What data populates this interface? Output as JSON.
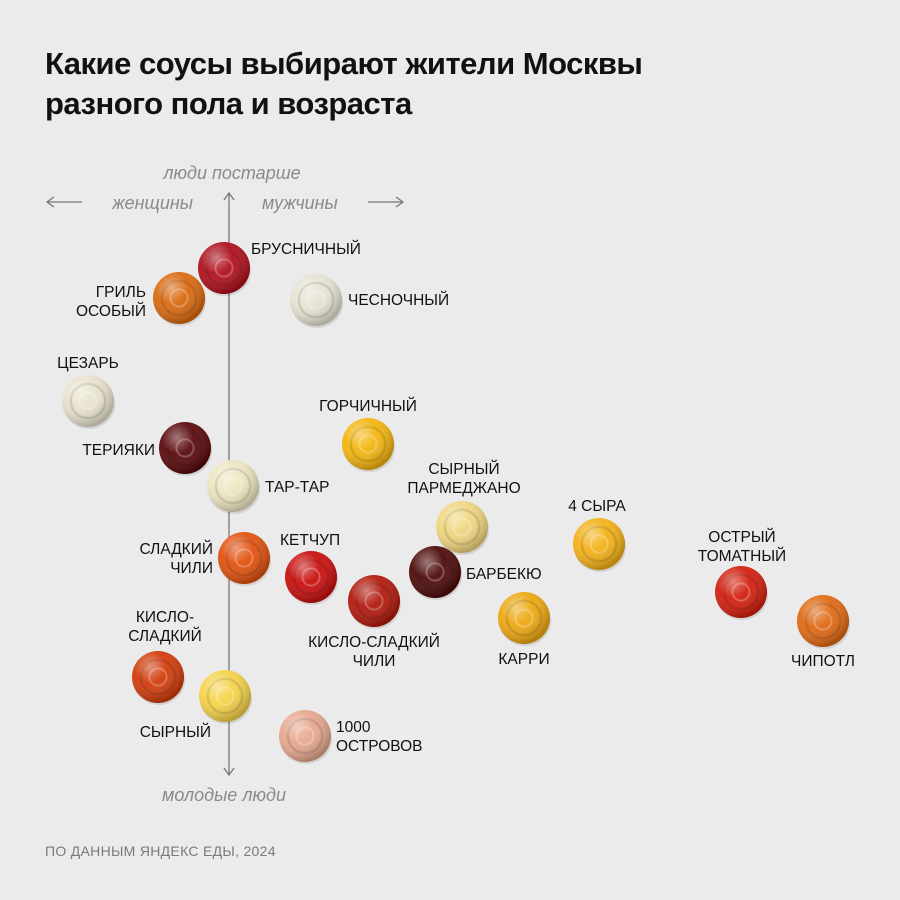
{
  "title": {
    "line1": "Какие соусы выбирают жители Москвы",
    "line2": "разного пола и возраста"
  },
  "footer": "ПО ДАННЫМ ЯНДЕКС ЕДЫ, 2024",
  "chart_data": {
    "type": "scatter",
    "axis_labels": {
      "top": "люди постарше",
      "bottom": "молодые люди",
      "left": "женщины",
      "right": "мужчины"
    },
    "points": [
      {
        "name": "БРУСНИЧНЫЙ",
        "lines": [
          "БРУСНИЧНЫЙ"
        ],
        "color": "#b0101e",
        "label_pos": "right-top"
      },
      {
        "name": "ГРИЛЬ ОСОБЫЙ",
        "lines": [
          "ГРИЛЬ",
          "ОСОБЫЙ"
        ],
        "color": "#d96a10",
        "label_pos": "left"
      },
      {
        "name": "ЧЕСНОЧНЫЙ",
        "lines": [
          "ЧЕСНОЧНЫЙ"
        ],
        "color": "#e6e3d3",
        "label_pos": "right"
      },
      {
        "name": "ЦЕЗАРЬ",
        "lines": [
          "ЦЕЗАРЬ"
        ],
        "color": "#e8e2cc",
        "label_pos": "top"
      },
      {
        "name": "ГОРЧИЧНЫЙ",
        "lines": [
          "ГОРЧИЧНЫЙ"
        ],
        "color": "#f3b50f",
        "label_pos": "top"
      },
      {
        "name": "ТЕРИЯКИ",
        "lines": [
          "ТЕРИЯКИ"
        ],
        "color": "#5a0a0c",
        "label_pos": "left"
      },
      {
        "name": "ТАР-ТАР",
        "lines": [
          "ТАР-ТАР"
        ],
        "color": "#ede6c2",
        "label_pos": "right"
      },
      {
        "name": "СЫРНЫЙ ПАРМЕДЖАНО",
        "lines": [
          "СЫРНЫЙ",
          "ПАРМЕДЖАНО"
        ],
        "color": "#f0d680",
        "label_pos": "top"
      },
      {
        "name": "4 СЫРА",
        "lines": [
          "4 СЫРА"
        ],
        "color": "#f3b118",
        "label_pos": "top"
      },
      {
        "name": "ОСТРЫЙ ТОМАТНЫЙ",
        "lines": [
          "ОСТРЫЙ",
          "ТОМАТНЫЙ"
        ],
        "color": "#d3200f",
        "label_pos": "top"
      },
      {
        "name": "СЛАДКИЙ ЧИЛИ",
        "lines": [
          "СЛАДКИЙ",
          "ЧИЛИ"
        ],
        "color": "#e1520f",
        "label_pos": "left"
      },
      {
        "name": "КЕТЧУП",
        "lines": [
          "КЕТЧУП"
        ],
        "color": "#c8100e",
        "label_pos": "right-top"
      },
      {
        "name": "БАРБЕКЮ",
        "lines": [
          "БАРБЕКЮ"
        ],
        "color": "#4e0c0a",
        "label_pos": "right"
      },
      {
        "name": "КИСЛО-СЛАДКИЙ ЧИЛИ",
        "lines": [
          "КИСЛО-СЛАДКИЙ",
          "ЧИЛИ"
        ],
        "color": "#b21a0e",
        "label_pos": "bottom"
      },
      {
        "name": "КАРРИ",
        "lines": [
          "КАРРИ"
        ],
        "color": "#eda812",
        "label_pos": "bottom"
      },
      {
        "name": "ЧИПОТЛ",
        "lines": [
          "ЧИПОТЛ"
        ],
        "color": "#e06a14",
        "label_pos": "bottom"
      },
      {
        "name": "КИСЛО-СЛАДКИЙ",
        "lines": [
          "КИСЛО-",
          "СЛАДКИЙ"
        ],
        "color": "#d23c0c",
        "label_pos": "top"
      },
      {
        "name": "СЫРНЫЙ",
        "lines": [
          "СЫРНЫЙ"
        ],
        "color": "#f5d34a",
        "label_pos": "left"
      },
      {
        "name": "1000 ОСТРОВОВ",
        "lines": [
          "1000",
          "ОСТРОВОВ"
        ],
        "color": "#e6a890",
        "label_pos": "right"
      }
    ]
  }
}
